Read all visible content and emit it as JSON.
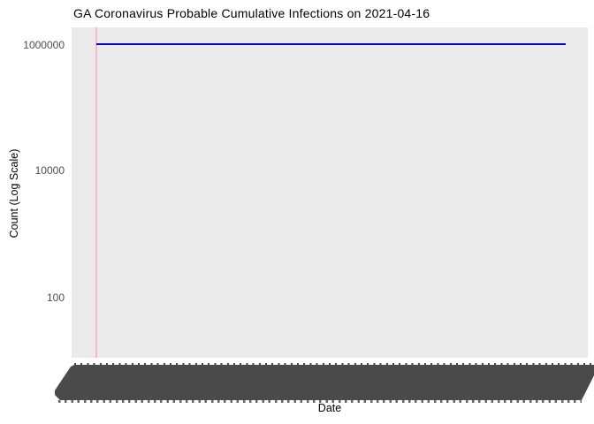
{
  "title": "GA Coronavirus Probable Cumulative Infections on 2021-04-16",
  "axes": {
    "y_label": "Count (Log Scale)",
    "x_label": "Date",
    "y_tick_labels": [
      "1000000",
      "10000",
      "100"
    ]
  },
  "chart_data": {
    "type": "line",
    "title": "GA Coronavirus Probable Cumulative Infections on 2021-04-16",
    "xlabel": "Date",
    "ylabel": "Count (Log Scale)",
    "y_scale": "log10",
    "y_ticks": [
      100,
      10000,
      1000000
    ],
    "ylim_approx": [
      30,
      2000000
    ],
    "grid": false,
    "legend": false,
    "x_tick_labels_legible": false,
    "x_tick_label_note": "hundreds of rotated date labels overlap into a solid unreadable dark band along the x axis",
    "series": [
      {
        "name": "Probable Cumulative Infections",
        "color": "#0000E0",
        "shape": "flat horizontal line",
        "value_approx": 1050000,
        "x_start_frac": 0.047,
        "x_end_frac": 0.955
      }
    ],
    "markers": [
      {
        "name": "vertical reference line",
        "orientation": "vertical",
        "color": "#FFB6C1",
        "x_frac": 0.047
      }
    ]
  },
  "colors": {
    "panel_background": "#EBEBEB",
    "series_line": "#0000E0",
    "reference_line": "#FFB6C1",
    "axis_tick_text": "#4D4D4D",
    "x_label_band": "#4A4A4A",
    "title_text": "#000000"
  }
}
